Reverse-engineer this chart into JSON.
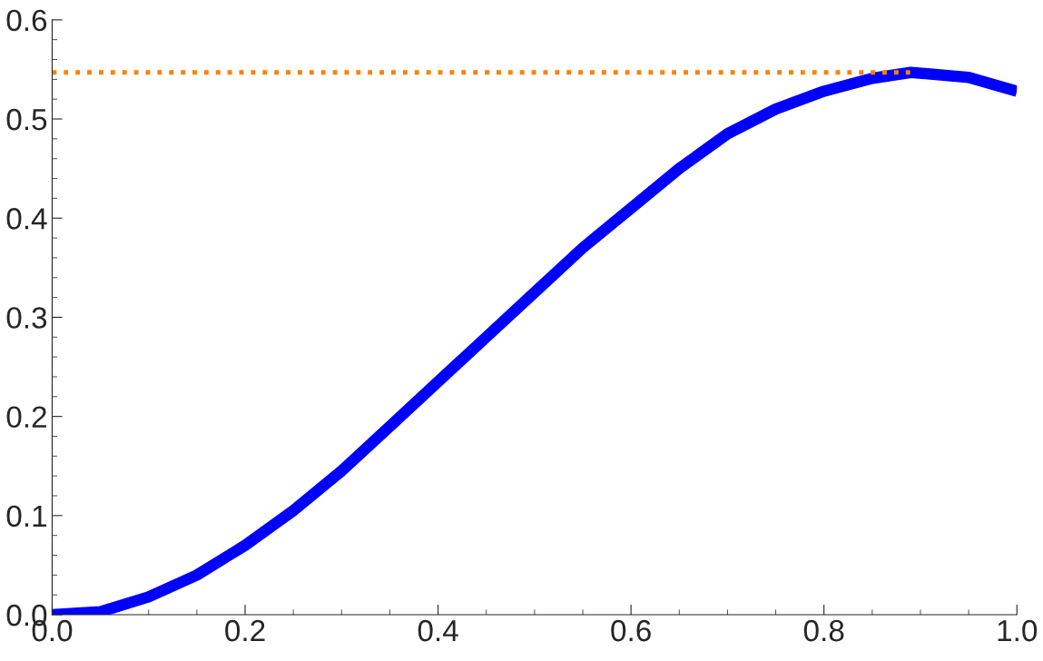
{
  "chart_data": {
    "type": "line",
    "x": [
      0,
      0.05,
      0.1,
      0.15,
      0.2,
      0.25,
      0.3,
      0.35,
      0.4,
      0.45,
      0.5,
      0.55,
      0.6,
      0.65,
      0.7,
      0.75,
      0.8,
      0.85,
      0.89,
      0.95,
      1.0
    ],
    "series": [
      {
        "color": "#0000ff",
        "values": [
          0,
          0.003,
          0.018,
          0.04,
          0.07,
          0.105,
          0.145,
          0.19,
          0.235,
          0.28,
          0.325,
          0.37,
          0.41,
          0.45,
          0.485,
          0.51,
          0.528,
          0.541,
          0.547,
          0.542,
          0.528
        ]
      },
      {
        "color": "#ff8000",
        "line_style": "dotted",
        "x": [
          0,
          0.89
        ],
        "values": [
          0.547,
          0.547
        ]
      }
    ],
    "xlim": [
      0,
      1
    ],
    "ylim": [
      0,
      0.6
    ],
    "xticks": [
      {
        "value": 0,
        "label": "0.0"
      },
      0.2,
      0.4,
      0.6,
      0.8,
      {
        "value": 1,
        "label": "1.0"
      }
    ],
    "yticks": [
      {
        "value": 0,
        "label": "0.0"
      },
      0.1,
      0.2,
      0.3,
      0.4,
      0.5,
      0.6
    ],
    "grid": false,
    "legend": false
  }
}
